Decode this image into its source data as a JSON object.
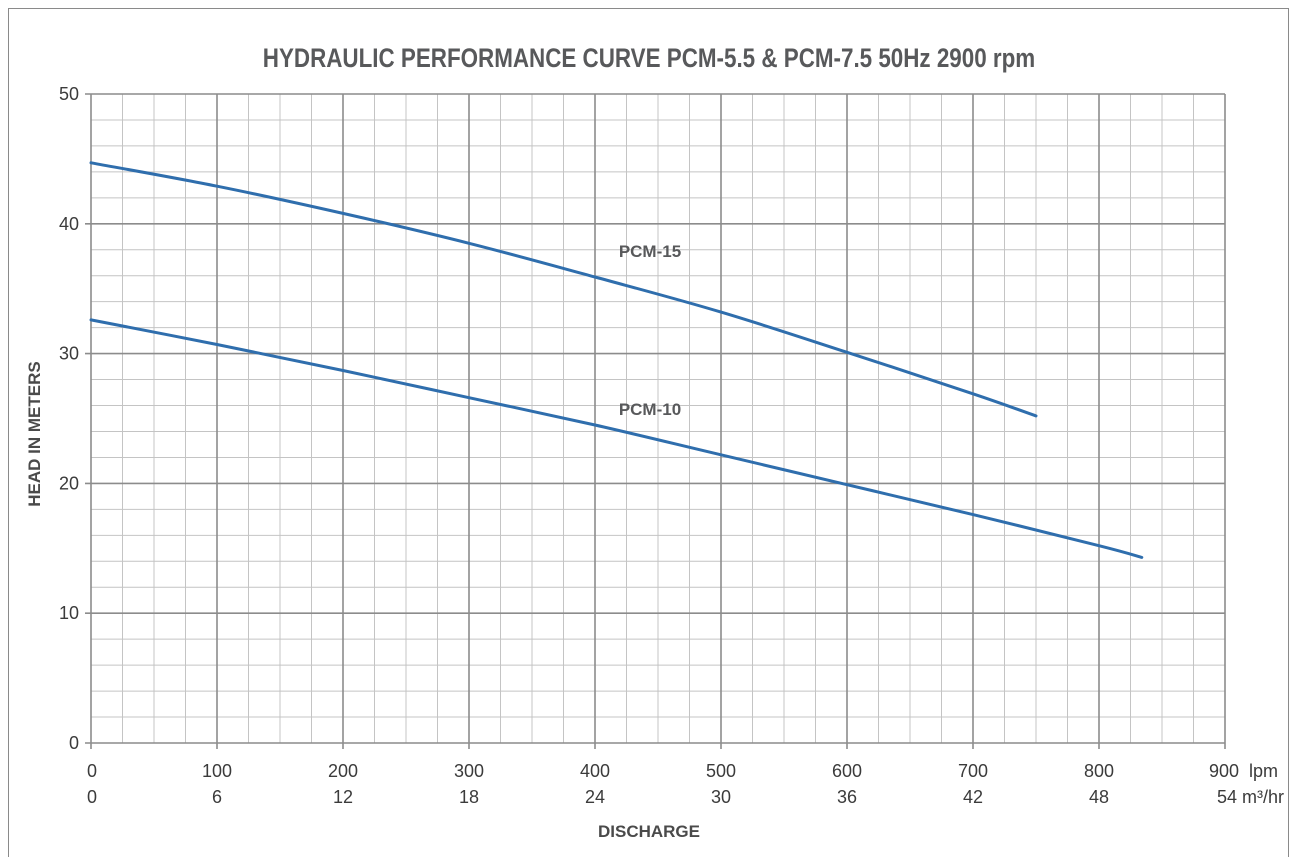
{
  "chart_data": {
    "type": "line",
    "title": "HYDRAULIC PERFORMANCE CURVE PCM-5.5 & PCM-7.5 50Hz 2900 rpm",
    "xlabel": "DISCHARGE",
    "ylabel": "HEAD IN METERS",
    "xlim": [
      0,
      900
    ],
    "ylim": [
      0,
      50
    ],
    "x_ticks_lpm": [
      "0",
      "100",
      "200",
      "300",
      "400",
      "500",
      "600",
      "700",
      "800",
      "900"
    ],
    "x_unit_lpm": "lpm",
    "x_ticks_m3hr": [
      "0",
      "6",
      "12",
      "18",
      "24",
      "30",
      "36",
      "42",
      "48",
      "54"
    ],
    "x_unit_m3hr": "m³/hr",
    "y_ticks": [
      "0",
      "10",
      "20",
      "30",
      "40",
      "50"
    ],
    "grid": true,
    "line_color": "#2f6ead",
    "series": [
      {
        "name": "PCM-15",
        "x": [
          0,
          100,
          200,
          300,
          400,
          500,
          600,
          700,
          750
        ],
        "y": [
          44.7,
          42.9,
          40.8,
          38.5,
          35.9,
          33.2,
          30.1,
          26.9,
          25.2
        ]
      },
      {
        "name": "PCM-10",
        "x": [
          0,
          100,
          200,
          300,
          400,
          500,
          600,
          700,
          800,
          834
        ],
        "y": [
          32.6,
          30.7,
          28.7,
          26.6,
          24.5,
          22.2,
          19.9,
          17.6,
          15.2,
          14.3
        ]
      }
    ]
  }
}
